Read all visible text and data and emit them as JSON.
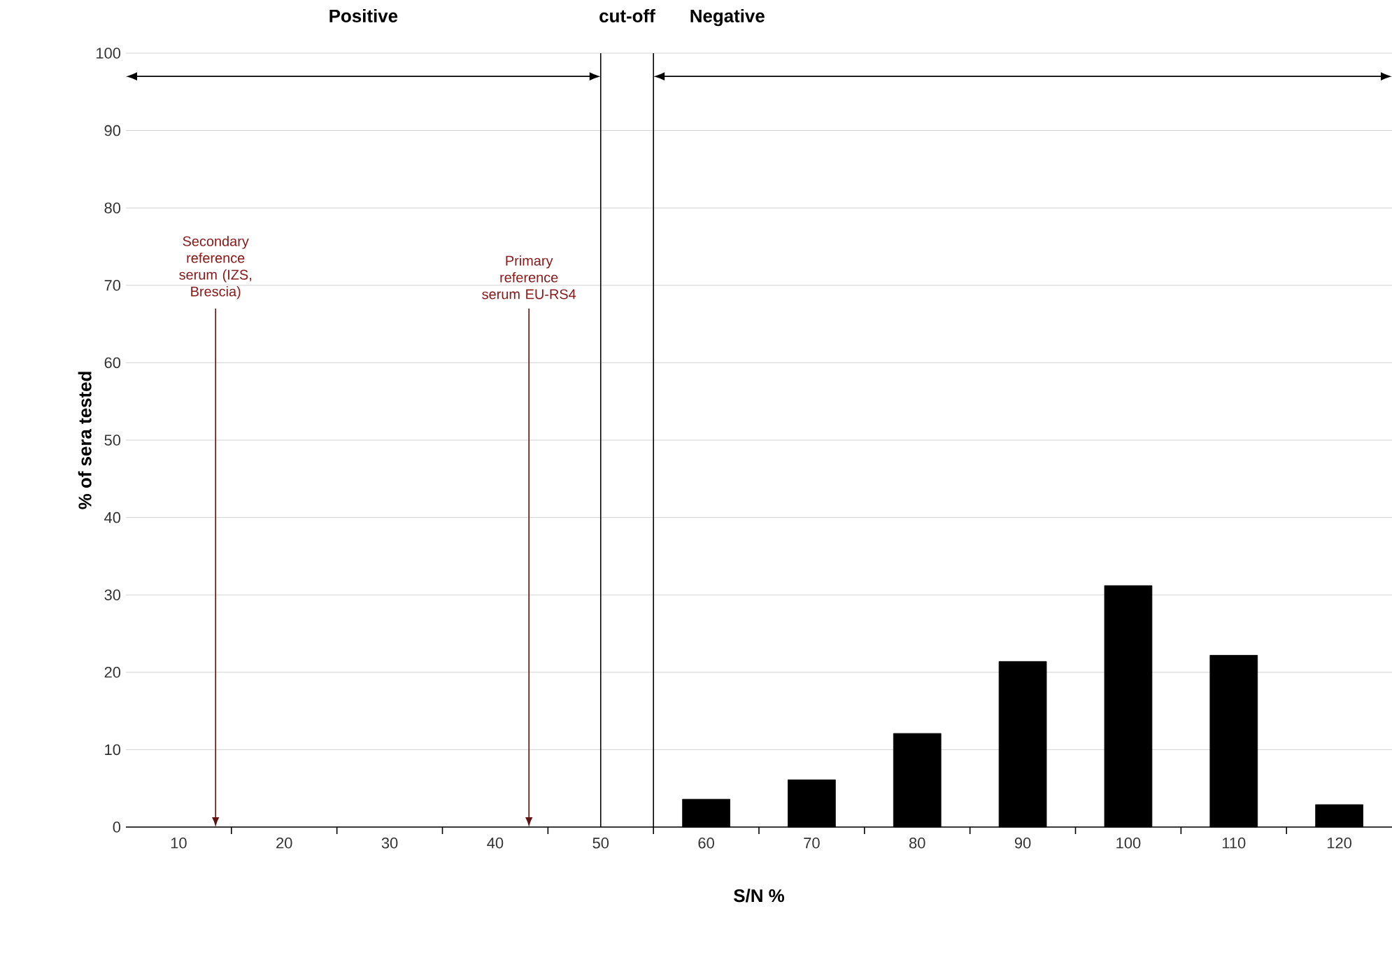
{
  "chart_data": {
    "type": "bar",
    "xlabel": "S/N %",
    "ylabel": "% of sera tested",
    "x": [
      60,
      70,
      80,
      90,
      100,
      110,
      120
    ],
    "values": [
      3.6,
      6.1,
      12.1,
      21.4,
      31.2,
      22.2,
      2.9
    ],
    "color": "#000000",
    "xlim": [
      5,
      125
    ],
    "xticks": [
      10,
      20,
      30,
      40,
      50,
      60,
      70,
      80,
      90,
      100,
      110,
      120,
      {
        "value": 15,
        "label": null
      },
      {
        "value": 25,
        "label": null
      },
      {
        "value": 35,
        "label": null
      },
      {
        "value": 45,
        "label": null
      },
      {
        "value": 55,
        "label": null
      },
      {
        "value": 65,
        "label": null
      },
      {
        "value": 75,
        "label": null
      },
      {
        "value": 85,
        "label": null
      },
      {
        "value": 95,
        "label": null
      },
      {
        "value": 105,
        "label": null
      },
      {
        "value": 115,
        "label": null
      }
    ],
    "ylim": [
      0,
      100
    ],
    "yticks": [
      0,
      10,
      20,
      30,
      40,
      50,
      60,
      70,
      80,
      90,
      100
    ],
    "grid": "y",
    "ref_lines": [
      {
        "axis": "x",
        "value": 50,
        "label": "cut-off"
      },
      {
        "axis": "x",
        "value": 55
      }
    ],
    "annotations": [
      "Positive",
      "Negative",
      "Secondary reference serum (IZS, Brescia)",
      "Primary reference serum EU-RS4"
    ]
  }
}
